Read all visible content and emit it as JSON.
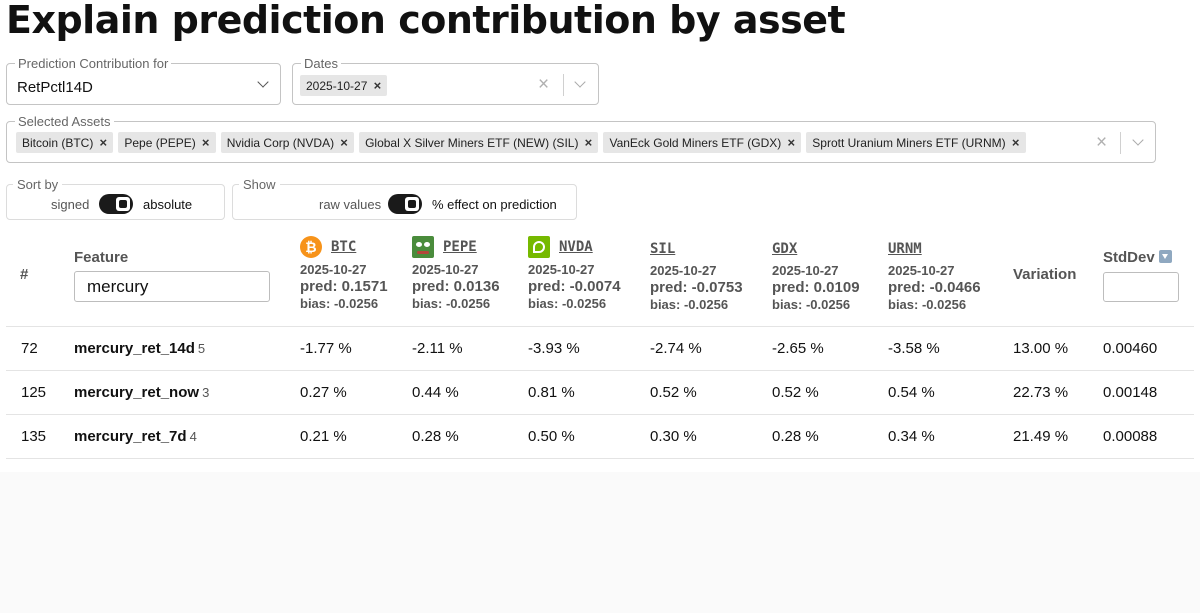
{
  "page_title": "Explain prediction contribution by asset",
  "contribution": {
    "legend": "Prediction Contribution for",
    "value": "RetPctl14D"
  },
  "dates": {
    "legend": "Dates",
    "chips": [
      "2025-10-27"
    ]
  },
  "assets_select": {
    "legend": "Selected Assets",
    "chips": [
      "Bitcoin (BTC)",
      "Pepe (PEPE)",
      "Nvidia Corp (NVDA)",
      "Global X Silver Miners ETF (NEW) (SIL)",
      "VanEck Gold Miners ETF (GDX)",
      "Sprott Uranium Miners ETF (URNM)"
    ]
  },
  "sort_by": {
    "title": "Sort by",
    "left": "signed",
    "right": "absolute",
    "state": "absolute"
  },
  "show": {
    "title": "Show",
    "left": "raw values",
    "right": "% effect on prediction",
    "state": "% effect on prediction"
  },
  "table": {
    "hash": "#",
    "feature_header": "Feature",
    "feature_filter": "mercury",
    "variation_header": "Variation",
    "stddev_header": "StdDev",
    "stddev_sort_icon": "sort-down-icon",
    "assets": [
      {
        "ticker": "BTC",
        "date": "2025-10-27",
        "pred": "pred: 0.1571",
        "bias": "bias: -0.0256",
        "icon": "bitcoin-icon"
      },
      {
        "ticker": "PEPE",
        "date": "2025-10-27",
        "pred": "pred: 0.0136",
        "bias": "bias: -0.0256",
        "icon": "pepe-icon"
      },
      {
        "ticker": "NVDA",
        "date": "2025-10-27",
        "pred": "pred: -0.0074",
        "bias": "bias: -0.0256",
        "icon": "nvidia-icon"
      },
      {
        "ticker": "SIL",
        "date": "2025-10-27",
        "pred": "pred: -0.0753",
        "bias": "bias: -0.0256"
      },
      {
        "ticker": "GDX",
        "date": "2025-10-27",
        "pred": "pred: 0.0109",
        "bias": "bias: -0.0256"
      },
      {
        "ticker": "URNM",
        "date": "2025-10-27",
        "pred": "pred: -0.0466",
        "bias": "bias: -0.0256"
      }
    ],
    "rows": [
      {
        "rank": "72",
        "feature": "mercury_ret_14d",
        "count": "5",
        "values": [
          "-1.77 %",
          "-2.11 %",
          "-3.93 %",
          "-2.74 %",
          "-2.65 %",
          "-3.58 %"
        ],
        "variation": "13.00 %",
        "stddev": "0.00460"
      },
      {
        "rank": "125",
        "feature": "mercury_ret_now",
        "count": "3",
        "values": [
          "0.27 %",
          "0.44 %",
          "0.81 %",
          "0.52 %",
          "0.52 %",
          "0.54 %"
        ],
        "variation": "22.73 %",
        "stddev": "0.00148"
      },
      {
        "rank": "135",
        "feature": "mercury_ret_7d",
        "count": "4",
        "values": [
          "0.21 %",
          "0.28 %",
          "0.50 %",
          "0.30 %",
          "0.28 %",
          "0.34 %"
        ],
        "variation": "21.49 %",
        "stddev": "0.00088"
      }
    ]
  }
}
